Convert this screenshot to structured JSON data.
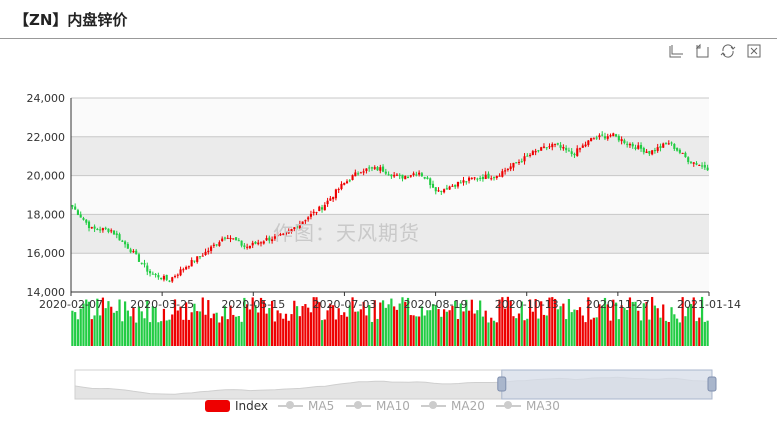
{
  "header": {
    "title": "【ZN】内盘锌价"
  },
  "toolbox": [
    {
      "name": "zoom-icon"
    },
    {
      "name": "zoom-reset-icon"
    },
    {
      "name": "restore-icon"
    },
    {
      "name": "save-image-icon"
    }
  ],
  "watermark": "作图：天风期货",
  "colors": {
    "up": "#ee0000",
    "down": "#22cc44",
    "slider_fill": "#d6dce8"
  },
  "legend": [
    {
      "label": "Index",
      "active": true
    },
    {
      "label": "MA5",
      "active": false
    },
    {
      "label": "MA10",
      "active": false
    },
    {
      "label": "MA20",
      "active": false
    },
    {
      "label": "MA30",
      "active": false
    }
  ],
  "chart_data": {
    "type": "candlestick",
    "title": "",
    "xlabel": "",
    "ylabel": "",
    "ylim": [
      14000,
      24000
    ],
    "y_ticks": [
      "24,000",
      "22,000",
      "20,000",
      "18,000",
      "16,000",
      "14,000"
    ],
    "x_tick_labels": [
      "2020-02-07",
      "2020-03-25",
      "2020-05-15",
      "2020-07-03",
      "2020-08-19",
      "2020-10-13",
      "2020-11-27",
      "2021-01-14"
    ],
    "grid": true,
    "dates": [
      "2020-02-07",
      "2020-03-25",
      "2020-05-15",
      "2020-07-03",
      "2020-08-19",
      "2020-10-13",
      "2020-11-27",
      "2021-01-14"
    ],
    "close_trend": [
      18400,
      17250,
      17200,
      16200,
      15000,
      14600,
      15400,
      16100,
      16950,
      16300,
      16700,
      16900,
      17700,
      18400,
      19500,
      20300,
      20350,
      19900,
      20200,
      19200,
      19600,
      19900,
      20000,
      20600,
      21200,
      21600,
      21100,
      21900,
      22100,
      21600,
      21200,
      21700,
      20800,
      20400
    ],
    "series": [
      {
        "name": "Index",
        "values": "candlestick OHLC + volume bars"
      }
    ],
    "slider_window": [
      0.67,
      1.0
    ]
  }
}
